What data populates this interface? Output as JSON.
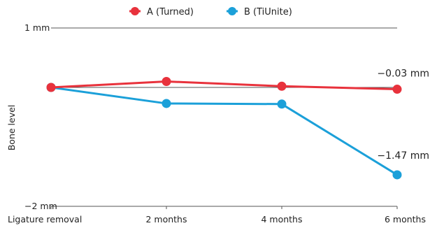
{
  "chart_data": {
    "type": "line",
    "title": "",
    "xlabel": "",
    "ylabel": "Bone level",
    "categories": [
      "Ligature removal",
      "2 months",
      "4 months",
      "6 months"
    ],
    "ylim": [
      -2,
      1
    ],
    "y_tick_labels": [
      {
        "value": 1,
        "label": "1 mm",
        "color": "#1a6fa8"
      },
      {
        "value": -2,
        "label": "−2 mm",
        "color": "#1a6fa8"
      }
    ],
    "baseline": 0,
    "legend_position": "top-center",
    "series": [
      {
        "name": "A (Turned)",
        "color": "#e8323c",
        "values": [
          0,
          0.1,
          0.02,
          -0.03
        ],
        "end_label": "−0.03 mm"
      },
      {
        "name": "B (TiUnite)",
        "color": "#1ba0d9",
        "values": [
          0,
          -0.27,
          -0.28,
          -1.47
        ],
        "end_label": "−1.47 mm"
      }
    ]
  }
}
